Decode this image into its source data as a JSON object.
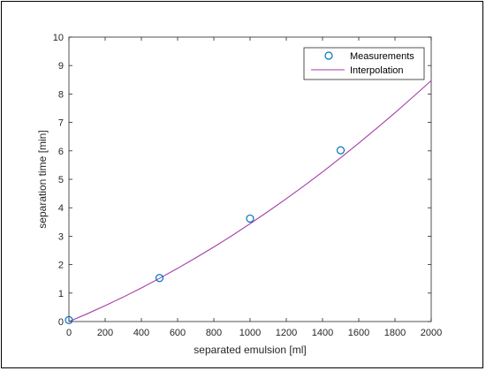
{
  "chart_data": {
    "type": "line",
    "title": "",
    "xlabel": "separated emulsion [ml]",
    "ylabel": "separation time [min]",
    "xlim": [
      0,
      2000
    ],
    "ylim": [
      0,
      10
    ],
    "x_ticks": [
      0,
      200,
      400,
      600,
      800,
      1000,
      1200,
      1400,
      1600,
      1800,
      2000
    ],
    "y_ticks": [
      0,
      1,
      2,
      3,
      4,
      5,
      6,
      7,
      8,
      9,
      10
    ],
    "grid": false,
    "legend_position": "top-right",
    "series": [
      {
        "name": "Measurements",
        "style": "markers",
        "marker": "circle",
        "color": "#0072BD",
        "x": [
          0,
          500,
          1000,
          1500
        ],
        "y": [
          0.05,
          1.53,
          3.62,
          6.02
        ]
      },
      {
        "name": "Interpolation",
        "style": "line",
        "color": "#A43EA8",
        "x": [
          0,
          100,
          200,
          300,
          400,
          500,
          600,
          700,
          800,
          900,
          1000,
          1100,
          1200,
          1300,
          1400,
          1500,
          1600,
          1700,
          1800,
          1900,
          2000
        ],
        "y": [
          0.0,
          0.27,
          0.56,
          0.86,
          1.18,
          1.52,
          1.87,
          2.24,
          2.62,
          3.02,
          3.44,
          3.87,
          4.32,
          4.78,
          5.26,
          5.76,
          6.27,
          6.8,
          7.34,
          7.9,
          8.47
        ]
      }
    ]
  }
}
